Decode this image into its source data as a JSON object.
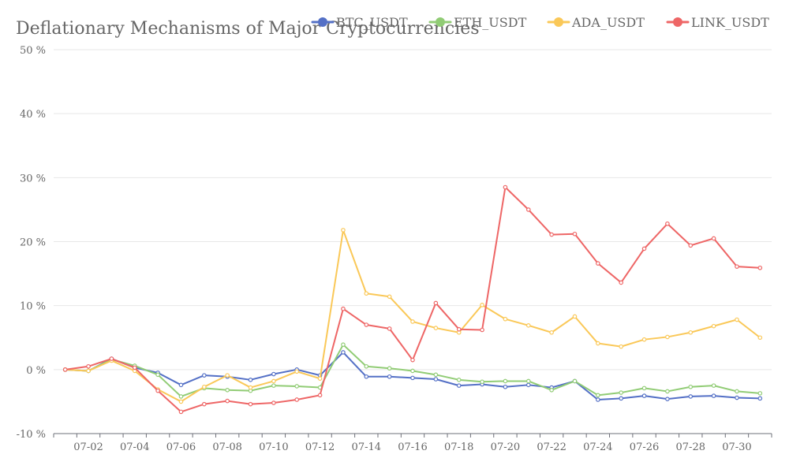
{
  "chart_data": {
    "type": "line",
    "title": "Deflationary Mechanisms of Major Cryptocurrencies",
    "xlabel": "",
    "ylabel": "",
    "x": [
      "07-01",
      "07-02",
      "07-03",
      "07-04",
      "07-05",
      "07-06",
      "07-07",
      "07-08",
      "07-09",
      "07-10",
      "07-11",
      "07-12",
      "07-13",
      "07-14",
      "07-15",
      "07-16",
      "07-17",
      "07-18",
      "07-19",
      "07-20",
      "07-21",
      "07-22",
      "07-23",
      "07-24",
      "07-25",
      "07-26",
      "07-27",
      "07-28",
      "07-29",
      "07-30",
      "07-31"
    ],
    "x_tick_labels": [
      "07-02",
      "07-04",
      "07-06",
      "07-08",
      "07-10",
      "07-12",
      "07-14",
      "07-16",
      "07-18",
      "07-20",
      "07-22",
      "07-24",
      "07-26",
      "07-28",
      "07-30"
    ],
    "y_tick_labels": [
      "50 %",
      "40 %",
      "30 %",
      "20 %",
      "10 %",
      "0 %",
      "-10 %"
    ],
    "ylim": [
      -10,
      50
    ],
    "grid": true,
    "legend_position": "top-right",
    "series": [
      {
        "name": "BTC_USDT",
        "color": "#5470c6",
        "values": [
          0,
          -0.2,
          1.7,
          0.3,
          -0.5,
          -2.4,
          -0.9,
          -1.1,
          -1.6,
          -0.7,
          0,
          -0.9,
          2.7,
          -1.1,
          -1.1,
          -1.3,
          -1.5,
          -2.5,
          -2.3,
          -2.7,
          -2.4,
          -2.8,
          -1.8,
          -4.7,
          -4.5,
          -4.1,
          -4.6,
          -4.2,
          -4.1,
          -4.4,
          -4.5
        ]
      },
      {
        "name": "ETH_USDT",
        "color": "#91cc75",
        "values": [
          0,
          -0.2,
          1.6,
          0.6,
          -0.8,
          -4.2,
          -2.9,
          -3.2,
          -3.3,
          -2.5,
          -2.6,
          -2.8,
          3.9,
          0.5,
          0.2,
          -0.2,
          -0.8,
          -1.6,
          -1.9,
          -1.8,
          -1.8,
          -3.2,
          -1.8,
          -4,
          -3.6,
          -2.9,
          -3.4,
          -2.7,
          -2.5,
          -3.4,
          -3.7
        ]
      },
      {
        "name": "ADA_USDT",
        "color": "#fac858",
        "values": [
          0,
          -0.2,
          1.4,
          -0.2,
          -3.1,
          -5,
          -2.7,
          -0.9,
          -2.8,
          -1.8,
          -0.3,
          -1.4,
          21.8,
          11.9,
          11.4,
          7.5,
          6.5,
          5.8,
          10.1,
          7.9,
          6.9,
          5.8,
          8.3,
          4.1,
          3.6,
          4.7,
          5.1,
          5.8,
          6.8,
          7.8,
          5.0
        ]
      },
      {
        "name": "LINK_USDT",
        "color": "#ee6666",
        "values": [
          0,
          0.5,
          1.7,
          0.3,
          -3.3,
          -6.6,
          -5.4,
          -4.9,
          -5.4,
          -5.2,
          -4.7,
          -4,
          9.5,
          7,
          6.4,
          1.5,
          10.4,
          6.3,
          6.2,
          28.5,
          25,
          21.1,
          21.2,
          16.6,
          13.6,
          18.9,
          22.8,
          19.4,
          20.5,
          16.1,
          15.9
        ]
      }
    ]
  }
}
